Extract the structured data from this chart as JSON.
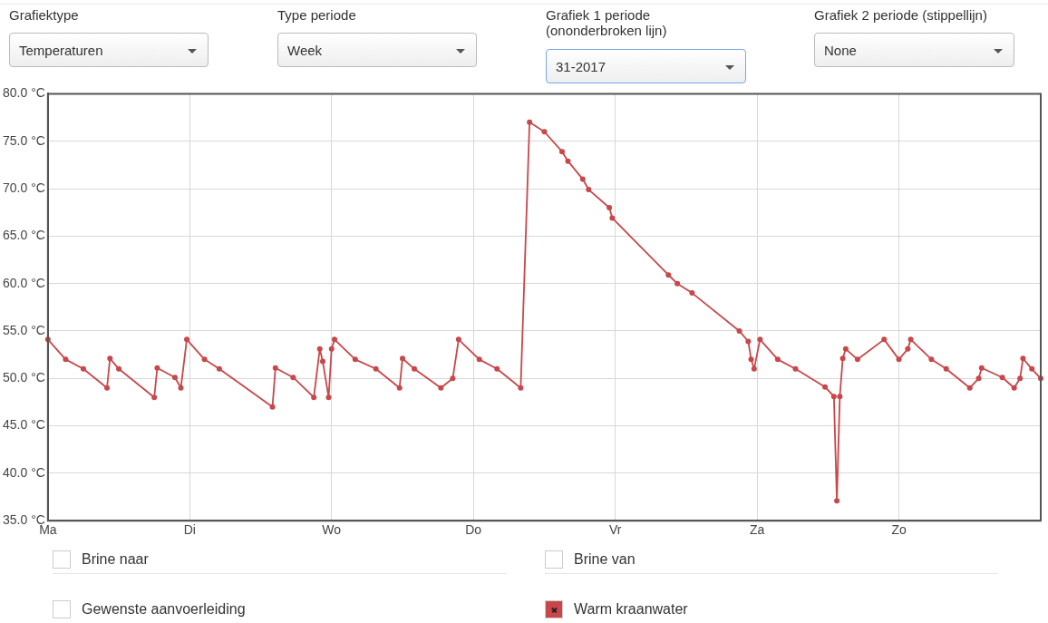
{
  "chart_data": {
    "type": "line",
    "annotations": [
      "Grafiektype",
      "Temperaturen",
      "Type periode",
      "Week",
      "Grafiek 1 periode (ononderbroken lijn)",
      "31-2017",
      "Grafiek 2 periode (stippellijn)",
      "None",
      "Brine naar",
      "Brine van",
      "Gewenste aanvoerleiding"
    ],
    "categories": [
      "Ma",
      null,
      null,
      null,
      null,
      null,
      null,
      null,
      null,
      null,
      null,
      null,
      null,
      null,
      null,
      null,
      null,
      null,
      null,
      null,
      null,
      null,
      null,
      null,
      null,
      null,
      null,
      null,
      null,
      null,
      null,
      null,
      null,
      null,
      null,
      null,
      null,
      null,
      null,
      null,
      null,
      null,
      null,
      null,
      null,
      null,
      null,
      null,
      "Di",
      null,
      null,
      null,
      null,
      null,
      null,
      null,
      null,
      null,
      null,
      null,
      null,
      null,
      null,
      null,
      null,
      null,
      null,
      null,
      null,
      null,
      null,
      null,
      null,
      null,
      null,
      null,
      null,
      null,
      null,
      null,
      null,
      null,
      null,
      null,
      null,
      null,
      null,
      null,
      null,
      null,
      null,
      null,
      null,
      null,
      null,
      null,
      "Wo",
      null,
      null,
      null,
      null,
      null,
      null,
      null,
      null,
      null,
      null,
      null,
      null,
      null,
      null,
      null,
      null,
      null,
      null,
      null,
      null,
      null,
      null,
      null,
      null,
      null,
      null,
      null,
      null,
      null,
      null,
      null,
      null,
      null,
      null,
      null,
      null,
      null,
      null,
      null,
      null,
      null,
      null,
      null,
      null,
      null,
      null,
      null,
      "Do",
      null,
      null,
      null,
      null,
      null,
      null,
      null,
      null,
      null,
      null,
      null,
      null,
      null,
      null,
      null,
      null,
      null,
      null,
      null,
      null,
      null,
      null,
      null,
      null,
      null,
      null,
      null,
      null,
      null,
      null,
      null,
      null,
      null,
      null,
      null,
      null,
      null,
      null,
      null,
      null,
      null,
      null,
      null,
      null,
      null,
      null,
      null,
      "Vr",
      null,
      null,
      null,
      null,
      null,
      null,
      null,
      null,
      null,
      null,
      null,
      null,
      null,
      null,
      null,
      null,
      null,
      null,
      null,
      null,
      null,
      null,
      null,
      null,
      null,
      null,
      null,
      null,
      null,
      null,
      null,
      null,
      null,
      null,
      null,
      null,
      null,
      null,
      null,
      null,
      null,
      null,
      null,
      null,
      null,
      null,
      null,
      "Za",
      null,
      null,
      null,
      null,
      null,
      null,
      null,
      null,
      null,
      null,
      null,
      null,
      null,
      null,
      null,
      null,
      null,
      null,
      null,
      null,
      null,
      null,
      null,
      null,
      null,
      null,
      null,
      null,
      null,
      null,
      null,
      null,
      null,
      null,
      null,
      null,
      null,
      null,
      null,
      null,
      null,
      null,
      null,
      null,
      null,
      null,
      null,
      "Zo",
      null,
      null,
      null,
      null,
      null,
      null,
      null,
      null,
      null,
      null,
      null,
      null,
      null,
      null,
      null,
      null,
      null,
      null,
      null,
      null,
      null,
      null,
      null,
      null,
      null,
      null,
      null,
      null,
      null,
      null,
      null,
      null,
      null,
      null,
      null,
      null,
      null,
      null,
      null,
      null,
      null,
      null,
      null,
      null,
      null,
      null,
      null,
      null
    ],
    "series": [
      {
        "name": "Warm kraanwater",
        "color": "#c8474a",
        "values": [
          54.1,
          null,
          null,
          null,
          null,
          null,
          52,
          null,
          null,
          null,
          null,
          null,
          51,
          null,
          null,
          null,
          null,
          null,
          null,
          null,
          49,
          52.1,
          null,
          null,
          51,
          null,
          null,
          null,
          null,
          null,
          null,
          null,
          null,
          null,
          null,
          null,
          48,
          51.1,
          null,
          null,
          null,
          null,
          null,
          50.1,
          null,
          49,
          null,
          54.1,
          null,
          null,
          null,
          null,
          null,
          52,
          null,
          null,
          null,
          null,
          51,
          null,
          null,
          null,
          null,
          null,
          null,
          null,
          null,
          null,
          null,
          null,
          null,
          null,
          null,
          null,
          null,
          null,
          47,
          51.1,
          null,
          null,
          null,
          null,
          null,
          50.1,
          null,
          null,
          null,
          null,
          null,
          null,
          48,
          null,
          53.1,
          51.8,
          null,
          48,
          53.1,
          54.1,
          null,
          null,
          null,
          null,
          null,
          null,
          52,
          null,
          null,
          null,
          null,
          null,
          null,
          51,
          null,
          null,
          null,
          null,
          null,
          null,
          null,
          49,
          52.1,
          null,
          null,
          null,
          51,
          null,
          null,
          null,
          null,
          null,
          null,
          null,
          null,
          49,
          null,
          null,
          null,
          50,
          null,
          54.1,
          null,
          null,
          null,
          null,
          null,
          null,
          52,
          null,
          null,
          null,
          null,
          null,
          51,
          null,
          null,
          null,
          null,
          null,
          null,
          null,
          49,
          null,
          null,
          77,
          null,
          null,
          null,
          null,
          76,
          null,
          null,
          null,
          null,
          null,
          73.9,
          null,
          72.9,
          null,
          null,
          null,
          null,
          71,
          null,
          69.9,
          null,
          null,
          null,
          null,
          null,
          null,
          68,
          66.9,
          null,
          null,
          null,
          null,
          null,
          null,
          null,
          null,
          null,
          null,
          null,
          null,
          null,
          null,
          null,
          null,
          null,
          null,
          60.9,
          null,
          null,
          60,
          null,
          null,
          null,
          null,
          59,
          null,
          null,
          null,
          null,
          null,
          null,
          null,
          null,
          null,
          null,
          null,
          null,
          null,
          null,
          null,
          55,
          null,
          null,
          53.9,
          52,
          51,
          null,
          54.1,
          null,
          null,
          null,
          null,
          null,
          52,
          null,
          null,
          null,
          null,
          null,
          51,
          null,
          null,
          null,
          null,
          null,
          null,
          null,
          null,
          null,
          49.1,
          null,
          null,
          48.1,
          37.1,
          48.1,
          52.1,
          53.1,
          null,
          null,
          null,
          52,
          null,
          null,
          null,
          null,
          null,
          null,
          null,
          null,
          54.1,
          null,
          null,
          null,
          null,
          52,
          null,
          null,
          53.1,
          54.1,
          null,
          null,
          null,
          null,
          null,
          null,
          52,
          null,
          null,
          null,
          null,
          51,
          null,
          null,
          null,
          null,
          null,
          null,
          null,
          49,
          null,
          null,
          50,
          51.1,
          null,
          null,
          null,
          null,
          null,
          null,
          50.1,
          null,
          null,
          null,
          49,
          null,
          50,
          52.1,
          null,
          null,
          51,
          null,
          null,
          50
        ]
      }
    ],
    "ylim": [
      35,
      80
    ],
    "yticks": [
      {
        "value": 35,
        "label": "35.0 °C"
      },
      {
        "value": 40,
        "label": "40.0 °C"
      },
      {
        "value": 45,
        "label": "45.0 °C"
      },
      {
        "value": 50,
        "label": "50.0 °C"
      },
      {
        "value": 55,
        "label": "55.0 °C"
      },
      {
        "value": 60,
        "label": "60.0 °C"
      },
      {
        "value": 65,
        "label": "65.0 °C"
      },
      {
        "value": 70,
        "label": "70.0 °C"
      },
      {
        "value": 75,
        "label": "75.0 °C"
      },
      {
        "value": 80,
        "label": "80.0 °C"
      }
    ],
    "grid": true,
    "legend": "bottom",
    "marker": "circle",
    "line_style": "solid"
  }
}
